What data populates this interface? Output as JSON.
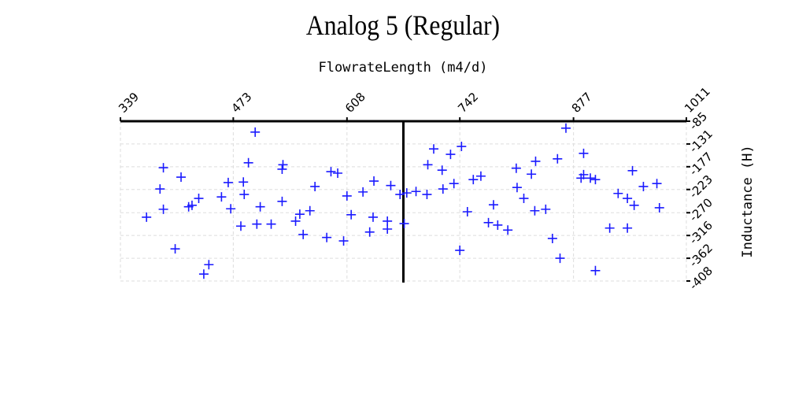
{
  "chart_data": {
    "type": "scatter",
    "title": "Analog 5 (Regular)",
    "x_label": "FlowrateLength (m4/d)",
    "y_label": "Inductance (H)",
    "xlim": [
      339,
      1011
    ],
    "xticks": [
      339,
      473,
      608,
      742,
      877,
      1011
    ],
    "ylim": [
      -408,
      -85
    ],
    "yticks": [
      -85,
      -131,
      -177,
      -223,
      -270,
      -316,
      -362,
      -408
    ],
    "grid": true,
    "marker": "+",
    "vline": 675,
    "series": [
      {
        "name": "Analog 5",
        "color": "#1a1aff",
        "x": [
          370,
          390,
          386,
          390,
          404,
          411,
          420,
          424,
          432,
          438,
          444,
          459,
          467,
          470,
          482,
          485,
          486,
          491,
          499,
          501,
          505,
          518,
          531,
          532,
          531,
          547,
          552,
          556,
          564,
          570,
          584,
          589,
          597,
          604,
          608,
          613,
          627,
          635,
          639,
          640,
          656,
          656,
          660,
          671,
          676,
          679,
          690,
          703,
          704,
          711,
          721,
          722,
          731,
          735,
          744,
          742,
          751,
          758,
          767,
          776,
          782,
          787,
          799,
          809,
          810,
          818,
          827,
          832,
          831,
          844,
          852,
          858,
          861,
          868,
          889,
          889,
          886,
          897,
          903,
          903,
          920,
          930,
          941,
          941,
          947,
          949,
          960,
          976,
          979
        ],
        "values": [
          -279,
          -179,
          -222,
          -263,
          -343,
          -198,
          -258,
          -255,
          -241,
          -394,
          -375,
          -238,
          -209,
          -262,
          -297,
          -208,
          -233,
          -169,
          -107,
          -293,
          -258,
          -293,
          -182,
          -173,
          -247,
          -287,
          -273,
          -314,
          -266,
          -217,
          -320,
          -187,
          -190,
          -327,
          -236,
          -274,
          -228,
          -309,
          -279,
          -206,
          -287,
          -303,
          -215,
          -233,
          -292,
          -230,
          -227,
          -233,
          -173,
          -141,
          -184,
          -222,
          -152,
          -211,
          -136,
          -346,
          -268,
          -203,
          -196,
          -290,
          -254,
          -295,
          -305,
          -180,
          -219,
          -241,
          -192,
          -166,
          -266,
          -263,
          -322,
          -161,
          -362,
          -99,
          -150,
          -193,
          -200,
          -200,
          -203,
          -387,
          -301,
          -231,
          -241,
          -301,
          -185,
          -255,
          -217,
          -211,
          -260
        ]
      }
    ]
  }
}
